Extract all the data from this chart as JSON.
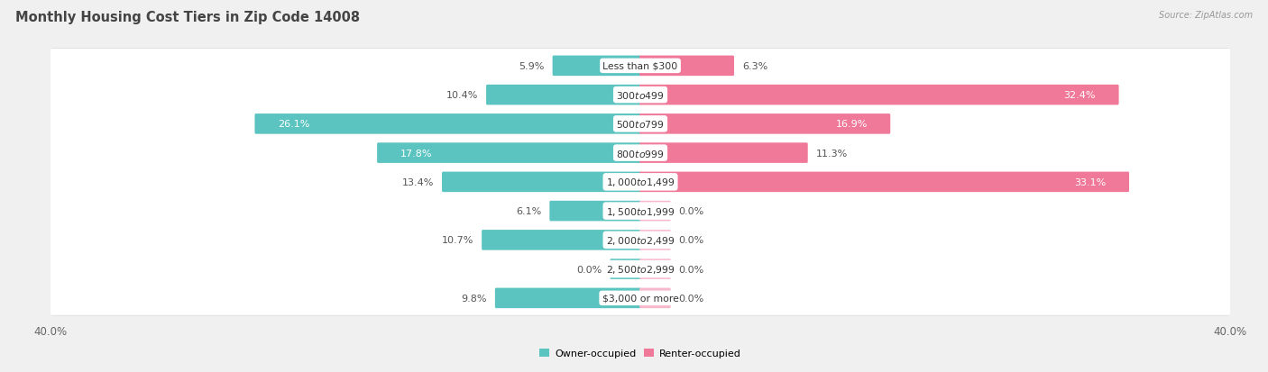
{
  "title": "Monthly Housing Cost Tiers in Zip Code 14008",
  "source": "Source: ZipAtlas.com",
  "categories": [
    "Less than $300",
    "$300 to $499",
    "$500 to $799",
    "$800 to $999",
    "$1,000 to $1,499",
    "$1,500 to $1,999",
    "$2,000 to $2,499",
    "$2,500 to $2,999",
    "$3,000 or more"
  ],
  "owner_values": [
    5.9,
    10.4,
    26.1,
    17.8,
    13.4,
    6.1,
    10.7,
    0.0,
    9.8
  ],
  "renter_values": [
    6.3,
    32.4,
    16.9,
    11.3,
    33.1,
    0.0,
    0.0,
    0.0,
    0.0
  ],
  "owner_color": "#5bc4c0",
  "renter_color": "#f07898",
  "renter_color_light": "#f8b8cc",
  "owner_label": "Owner-occupied",
  "renter_label": "Renter-occupied",
  "axis_max": 40.0,
  "background_color": "#f0f0f0",
  "row_bg_color": "#ffffff",
  "row_shadow_color": "#d8d8d8",
  "bar_height": 0.58,
  "title_fontsize": 10.5,
  "label_fontsize": 8.0,
  "cat_fontsize": 7.8,
  "tick_fontsize": 8.5,
  "renter_stub": 2.0
}
